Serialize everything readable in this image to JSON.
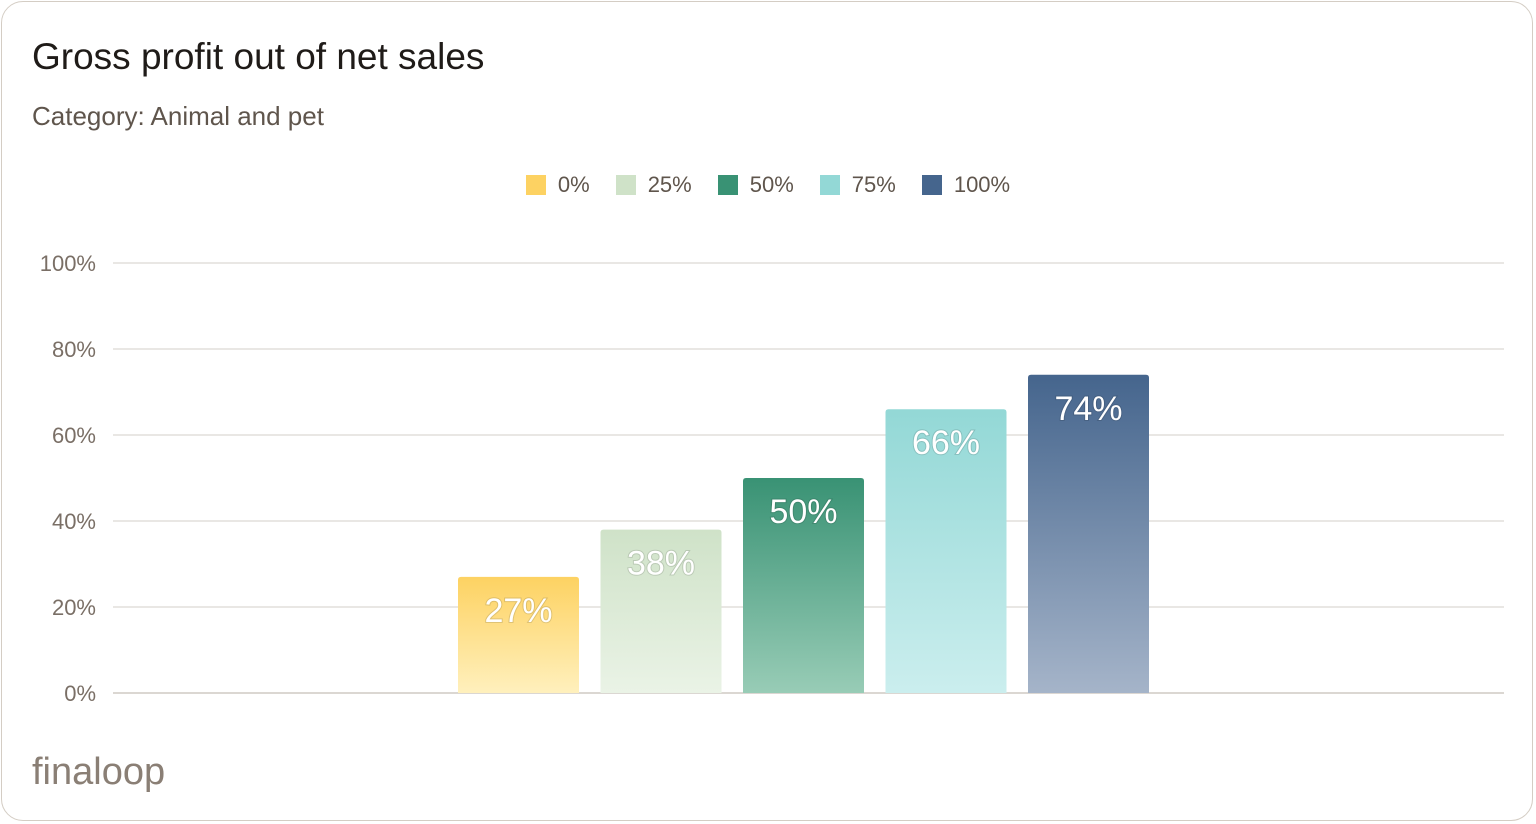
{
  "header": {
    "title": "Gross profit out of net sales",
    "subtitle": "Category: Animal and pet"
  },
  "brand": {
    "logo_text": "finaloop"
  },
  "chart_data": {
    "type": "bar",
    "title": "Gross profit out of net sales",
    "subtitle": "Category: Animal and pet",
    "categories": [
      "0%",
      "25%",
      "50%",
      "75%",
      "100%"
    ],
    "values": [
      27,
      38,
      50,
      66,
      74
    ],
    "data_labels": [
      "27%",
      "38%",
      "50%",
      "66%",
      "74%"
    ],
    "ylim": [
      0,
      100
    ],
    "yticks": [
      "0%",
      "20%",
      "40%",
      "60%",
      "80%",
      "100%"
    ],
    "ytick_values": [
      0,
      20,
      40,
      60,
      80,
      100
    ],
    "xlabel": "",
    "ylabel": "",
    "grid": true,
    "legend_position": "top",
    "legend": [
      {
        "label": "0%",
        "color": "#fdd262"
      },
      {
        "label": "25%",
        "color": "#cfe2c8"
      },
      {
        "label": "50%",
        "color": "#399274"
      },
      {
        "label": "75%",
        "color": "#93d8d6"
      },
      {
        "label": "100%",
        "color": "#45658d"
      }
    ],
    "colors": {
      "top": [
        "#fdd262",
        "#cfe2c8",
        "#399274",
        "#93d8d6",
        "#45658d"
      ],
      "bottom": [
        "#fff0bd",
        "#eaf3e6",
        "#98ccb6",
        "#cbeeee",
        "#a5b4c9"
      ]
    }
  }
}
